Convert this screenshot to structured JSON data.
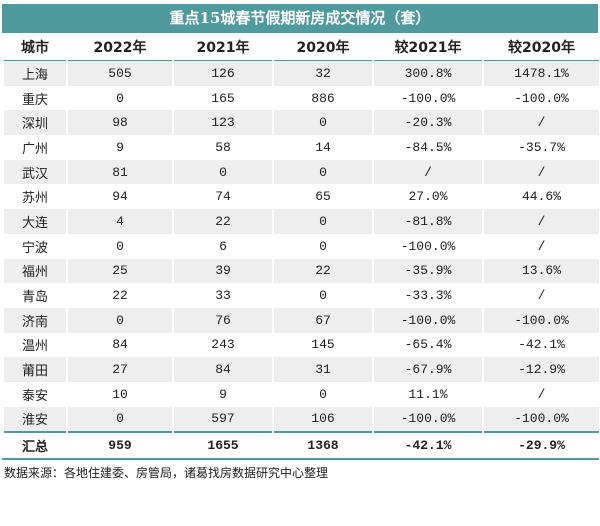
{
  "title": "重点15城春节假期新房成交情况（套）",
  "table": {
    "header": [
      "城市",
      "2022年",
      "2021年",
      "2020年",
      "较2021年",
      "较2020年"
    ],
    "rows": [
      [
        "上海",
        "505",
        "126",
        "32",
        "300.8%",
        "1478.1%"
      ],
      [
        "重庆",
        "0",
        "165",
        "886",
        "-100.0%",
        "-100.0%"
      ],
      [
        "深圳",
        "98",
        "123",
        "0",
        "-20.3%",
        "/"
      ],
      [
        "广州",
        "9",
        "58",
        "14",
        "-84.5%",
        "-35.7%"
      ],
      [
        "武汉",
        "81",
        "0",
        "0",
        "/",
        "/"
      ],
      [
        "苏州",
        "94",
        "74",
        "65",
        "27.0%",
        "44.6%"
      ],
      [
        "大连",
        "4",
        "22",
        "0",
        "-81.8%",
        "/"
      ],
      [
        "宁波",
        "0",
        "6",
        "0",
        "-100.0%",
        "/"
      ],
      [
        "福州",
        "25",
        "39",
        "22",
        "-35.9%",
        "13.6%"
      ],
      [
        "青岛",
        "22",
        "33",
        "0",
        "-33.3%",
        "/"
      ],
      [
        "济南",
        "0",
        "76",
        "67",
        "-100.0%",
        "-100.0%"
      ],
      [
        "温州",
        "84",
        "243",
        "145",
        "-65.4%",
        "-42.1%"
      ],
      [
        "莆田",
        "27",
        "84",
        "31",
        "-67.9%",
        "-12.9%"
      ],
      [
        "泰安",
        "10",
        "9",
        "0",
        "11.1%",
        "/"
      ],
      [
        "淮安",
        "0",
        "597",
        "106",
        "-100.0%",
        "-100.0%"
      ]
    ],
    "total": [
      "汇总",
      "959",
      "1655",
      "1368",
      "-42.1%",
      "-29.9%"
    ]
  },
  "source": "数据来源：各地住建委、房管局，诸葛找房数据研究中心整理"
}
